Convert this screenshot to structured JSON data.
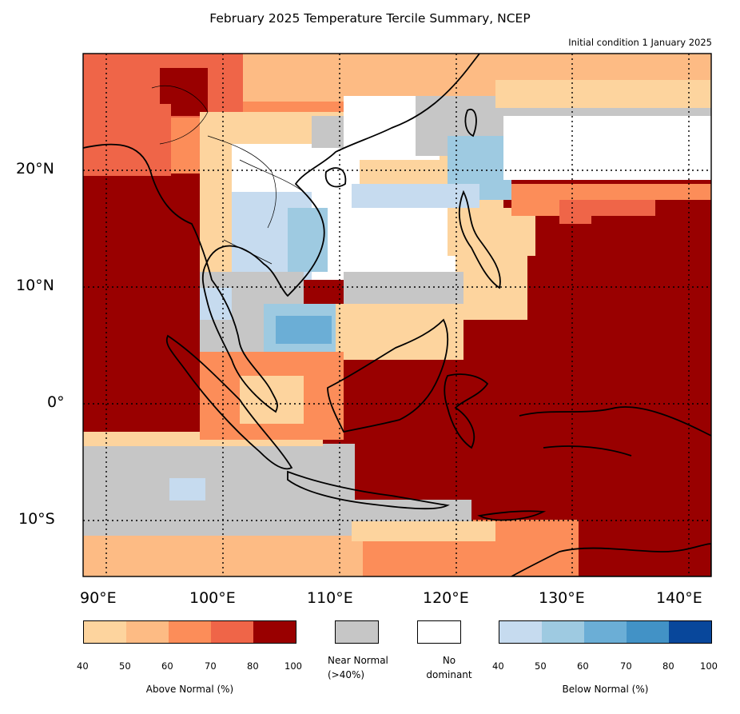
{
  "title": "February 2025 Temperature Tercile Summary, NCEP",
  "subtitle": "Initial condition 1 January 2025",
  "lat_labels": [
    "20°N",
    "10°N",
    "0°",
    "10°S"
  ],
  "lon_labels": [
    "90°E",
    "100°E",
    "110°E",
    "120°E",
    "130°E",
    "140°E"
  ],
  "map_extent": {
    "lon": [
      88,
      142
    ],
    "lat": [
      -15,
      30
    ]
  },
  "colorbars": {
    "above": {
      "title": "Above Normal (%)",
      "ticks": [
        "40",
        "50",
        "60",
        "70",
        "80",
        "100"
      ],
      "colors": [
        "#fdd49e",
        "#fdbb84",
        "#fc8d59",
        "#ef6548",
        "#990000"
      ]
    },
    "near": {
      "title": "Near Normal\n(>40%)",
      "color": "#c6c6c6"
    },
    "none": {
      "title": "No\ndominant",
      "color": "#ffffff"
    },
    "below": {
      "title": "Below Normal (%)",
      "ticks": [
        "40",
        "50",
        "60",
        "70",
        "80",
        "100"
      ],
      "colors": [
        "#c6dbef",
        "#9ecae1",
        "#6baed6",
        "#4292c6",
        "#08479b"
      ]
    }
  },
  "region_colors": {
    "above40": "#fdd49e",
    "above50": "#fdbb84",
    "above60": "#fc8d59",
    "above70": "#ef6548",
    "above80": "#990000",
    "near": "#c6c6c6",
    "none": "#ffffff",
    "below40": "#c6dbef",
    "below50": "#9ecae1",
    "below60": "#6baed6"
  }
}
